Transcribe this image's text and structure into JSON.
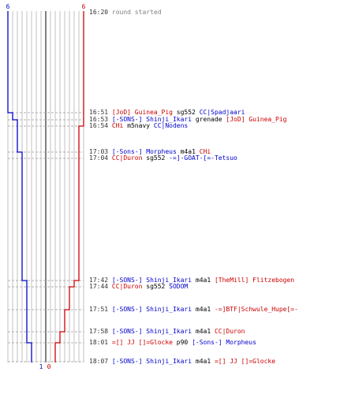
{
  "chart_data": {
    "type": "line",
    "title": "",
    "xlabel": "",
    "ylabel": "",
    "ylim": [
      0,
      6
    ],
    "top_labels": {
      "blue": "6",
      "red": "6"
    },
    "bottom_labels": {
      "blue": "1",
      "red": "0"
    },
    "colors": {
      "blue": "#0000cc",
      "red": "#cc0000",
      "grid": "#c0c0c0",
      "axis": "#808080"
    },
    "series": [
      {
        "color": "#0000cc",
        "values": [
          6,
          5,
          4,
          4,
          3,
          3,
          2,
          2,
          2,
          2,
          1,
          1
        ]
      },
      {
        "color": "#cc0000",
        "values": [
          6,
          6,
          6,
          5,
          5,
          5,
          4,
          3,
          2,
          1,
          0,
          0
        ]
      }
    ]
  },
  "events": [
    {
      "time": "16:20",
      "parts": [
        {
          "text": "round started",
          "color": "gray"
        }
      ]
    },
    {
      "time": "16:51",
      "parts": [
        {
          "text": "[JoD] Guinea_Pig",
          "color": "red"
        },
        {
          "text": " sg552 ",
          "color": "blk"
        },
        {
          "text": "CC|Spadjaari",
          "color": "blue"
        }
      ]
    },
    {
      "time": "16:53",
      "parts": [
        {
          "text": "[-SONS-] Shinji_Ikari",
          "color": "blue"
        },
        {
          "text": " grenade ",
          "color": "blk"
        },
        {
          "text": "[JoD] Guinea_Pig",
          "color": "red"
        }
      ]
    },
    {
      "time": "16:54",
      "parts": [
        {
          "text": "CHi",
          "color": "red"
        },
        {
          "text": " m5navy ",
          "color": "blk"
        },
        {
          "text": "CC|Nodens",
          "color": "blue"
        }
      ]
    },
    {
      "time": "17:03",
      "parts": [
        {
          "text": "[-Sons-] Morpheus",
          "color": "blue"
        },
        {
          "text": " m4a1 ",
          "color": "blk"
        },
        {
          "text": "CHi",
          "color": "red"
        }
      ]
    },
    {
      "time": "17:04",
      "parts": [
        {
          "text": "CC|Duron",
          "color": "red"
        },
        {
          "text": " sg552 ",
          "color": "blk"
        },
        {
          "text": "-=]-GOAT-[=-Tetsuo",
          "color": "blue"
        }
      ]
    },
    {
      "time": "17:42",
      "parts": [
        {
          "text": "[-SONS-] Shinji_Ikari",
          "color": "blue"
        },
        {
          "text": " m4a1 ",
          "color": "blk"
        },
        {
          "text": "[TheMill] Flitzebogen",
          "color": "red"
        }
      ]
    },
    {
      "time": "17:44",
      "parts": [
        {
          "text": "CC|Duron",
          "color": "red"
        },
        {
          "text": " sg552 ",
          "color": "blk"
        },
        {
          "text": "SODOM",
          "color": "blue"
        }
      ]
    },
    {
      "time": "17:51",
      "parts": [
        {
          "text": "[-SONS-] Shinji_Ikari",
          "color": "blue"
        },
        {
          "text": " m4a1 ",
          "color": "blk"
        },
        {
          "text": "-=]BTF|Schwule_Hupe[=-",
          "color": "red"
        }
      ]
    },
    {
      "time": "17:58",
      "parts": [
        {
          "text": "[-SONS-] Shinji_Ikari",
          "color": "blue"
        },
        {
          "text": " m4a1 ",
          "color": "blk"
        },
        {
          "text": "CC|Duron",
          "color": "red"
        }
      ]
    },
    {
      "time": "18:01",
      "parts": [
        {
          "text": "=[] JJ []=Glocke",
          "color": "red"
        },
        {
          "text": " p90 ",
          "color": "blk"
        },
        {
          "text": "[-Sons-] Morpheus",
          "color": "blue"
        }
      ]
    },
    {
      "time": "18:07",
      "parts": [
        {
          "text": "[-SONS-] Shinji_Ikari",
          "color": "blue"
        },
        {
          "text": " m4a1 ",
          "color": "blk"
        },
        {
          "text": "=[] JJ []=Glocke",
          "color": "red"
        }
      ]
    }
  ]
}
